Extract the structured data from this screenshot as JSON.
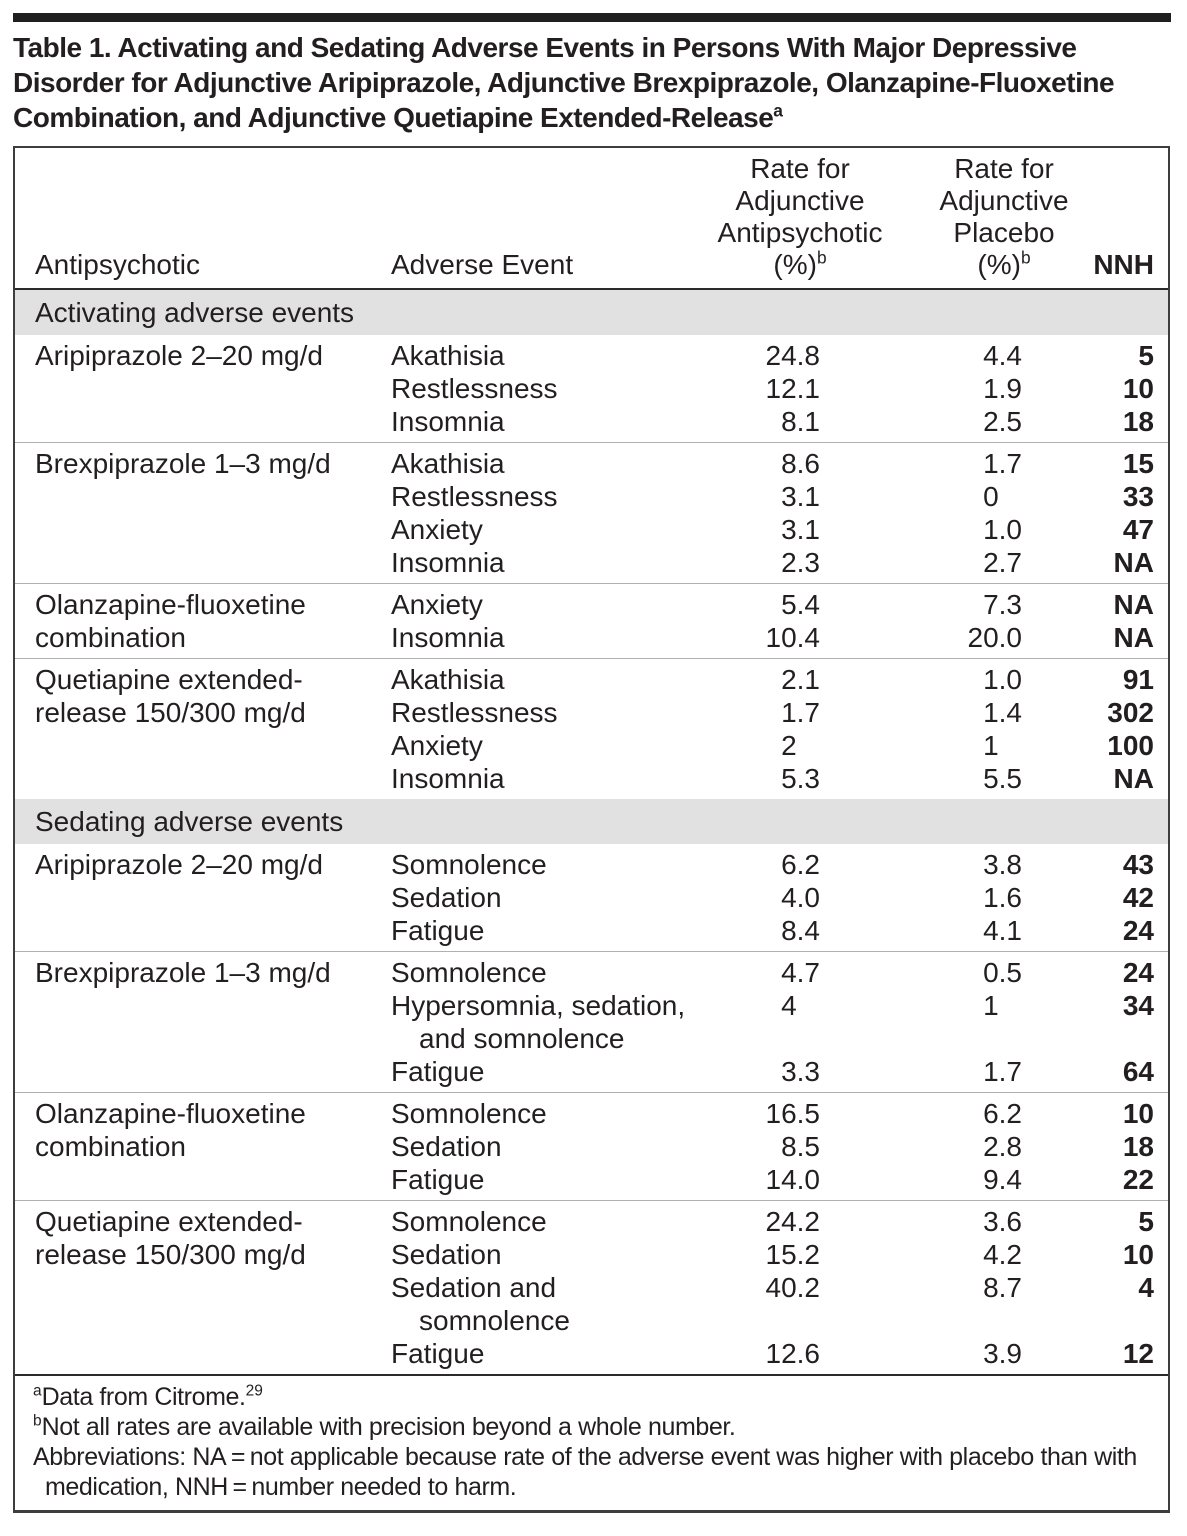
{
  "title": {
    "text": "Table 1. Activating and Sedating Adverse Events in Persons With Major Depressive Disorder for Adjunctive Aripiprazole, Adjunctive Brexpiprazole, Olanzapine-Fluoxetine Combination, and Adjunctive Quetiapine Extended-Release",
    "sup": "a"
  },
  "header": {
    "col1": "Antipsychotic",
    "col2": "Adverse Event",
    "col3_lines": [
      "Rate for",
      "Adjunctive",
      "Antipsychotic"
    ],
    "col3_unit": "(%)",
    "col3_sup": "b",
    "col4_lines": [
      "Rate for",
      "Adjunctive",
      "Placebo"
    ],
    "col4_unit": "(%)",
    "col4_sup": "b",
    "col5": "NNH"
  },
  "sections": [
    {
      "label": "Activating adverse events",
      "groups": [
        {
          "antipsychotic": "Aripiprazole 2–20 mg/d",
          "rows": [
            {
              "event": "Akathisia",
              "drug_rate": "24.8",
              "placebo_rate": "4.4",
              "nnh": "5"
            },
            {
              "event": "Restlessness",
              "drug_rate": "12.1",
              "placebo_rate": "1.9",
              "nnh": "10"
            },
            {
              "event": "Insomnia",
              "drug_rate": "8.1",
              "placebo_rate": "2.5",
              "nnh": "18"
            }
          ]
        },
        {
          "antipsychotic": "Brexpiprazole 1–3 mg/d",
          "rows": [
            {
              "event": "Akathisia",
              "drug_rate": "8.6",
              "placebo_rate": "1.7",
              "nnh": "15"
            },
            {
              "event": "Restlessness",
              "drug_rate": "3.1",
              "placebo_rate": "0",
              "nnh": "33"
            },
            {
              "event": "Anxiety",
              "drug_rate": "3.1",
              "placebo_rate": "1.0",
              "nnh": "47"
            },
            {
              "event": "Insomnia",
              "drug_rate": "2.3",
              "placebo_rate": "2.7",
              "nnh": "NA"
            }
          ]
        },
        {
          "antipsychotic": "Olanzapine-fluoxetine combination",
          "rows": [
            {
              "event": "Anxiety",
              "drug_rate": "5.4",
              "placebo_rate": "7.3",
              "nnh": "NA"
            },
            {
              "event": "Insomnia",
              "drug_rate": "10.4",
              "placebo_rate": "20.0",
              "nnh": "NA"
            }
          ]
        },
        {
          "antipsychotic": "Quetiapine extended-release 150/300 mg/d",
          "rows": [
            {
              "event": "Akathisia",
              "drug_rate": "2.1",
              "placebo_rate": "1.0",
              "nnh": "91"
            },
            {
              "event": "Restlessness",
              "drug_rate": "1.7",
              "placebo_rate": "1.4",
              "nnh": "302"
            },
            {
              "event": "Anxiety",
              "drug_rate": "2",
              "placebo_rate": "1",
              "nnh": "100"
            },
            {
              "event": "Insomnia",
              "drug_rate": "5.3",
              "placebo_rate": "5.5",
              "nnh": "NA"
            }
          ]
        }
      ]
    },
    {
      "label": "Sedating adverse events",
      "groups": [
        {
          "antipsychotic": "Aripiprazole 2–20 mg/d",
          "rows": [
            {
              "event": "Somnolence",
              "drug_rate": "6.2",
              "placebo_rate": "3.8",
              "nnh": "43"
            },
            {
              "event": "Sedation",
              "drug_rate": "4.0",
              "placebo_rate": "1.6",
              "nnh": "42"
            },
            {
              "event": "Fatigue",
              "drug_rate": "8.4",
              "placebo_rate": "4.1",
              "nnh": "24"
            }
          ]
        },
        {
          "antipsychotic": "Brexpiprazole 1–3 mg/d",
          "rows": [
            {
              "event": "Somnolence",
              "drug_rate": "4.7",
              "placebo_rate": "0.5",
              "nnh": "24"
            },
            {
              "event": "Hypersomnia, sedation, and somnolence",
              "drug_rate": "4",
              "placebo_rate": "1",
              "nnh": "34"
            },
            {
              "event": "Fatigue",
              "drug_rate": "3.3",
              "placebo_rate": "1.7",
              "nnh": "64"
            }
          ]
        },
        {
          "antipsychotic": "Olanzapine-fluoxetine combination",
          "rows": [
            {
              "event": "Somnolence",
              "drug_rate": "16.5",
              "placebo_rate": "6.2",
              "nnh": "10"
            },
            {
              "event": "Sedation",
              "drug_rate": "8.5",
              "placebo_rate": "2.8",
              "nnh": "18"
            },
            {
              "event": "Fatigue",
              "drug_rate": "14.0",
              "placebo_rate": "9.4",
              "nnh": "22"
            }
          ]
        },
        {
          "antipsychotic": "Quetiapine extended-release 150/300 mg/d",
          "rows": [
            {
              "event": "Somnolence",
              "drug_rate": "24.2",
              "placebo_rate": "3.6",
              "nnh": "5"
            },
            {
              "event": "Sedation",
              "drug_rate": "15.2",
              "placebo_rate": "4.2",
              "nnh": "10"
            },
            {
              "event": "Sedation and somnolence",
              "drug_rate": "40.2",
              "placebo_rate": "8.7",
              "nnh": "4"
            },
            {
              "event": "Fatigue",
              "drug_rate": "12.6",
              "placebo_rate": "3.9",
              "nnh": "12"
            }
          ]
        }
      ]
    }
  ],
  "footnotes": {
    "a_sup": "a",
    "a_text": "Data from Citrome.",
    "a_ref": "29",
    "b_sup": "b",
    "b_text": "Not all rates are available with precision beyond a whole number.",
    "abbrev": "Abbreviations: NA = not applicable because rate of the adverse event was higher with placebo than with medication, NNH = number needed to harm."
  },
  "colors": {
    "section_band": "#e1e1e1",
    "text": "#231f20",
    "rule_dark": "#2b2b2b",
    "rule_light": "#b0b0b0"
  }
}
